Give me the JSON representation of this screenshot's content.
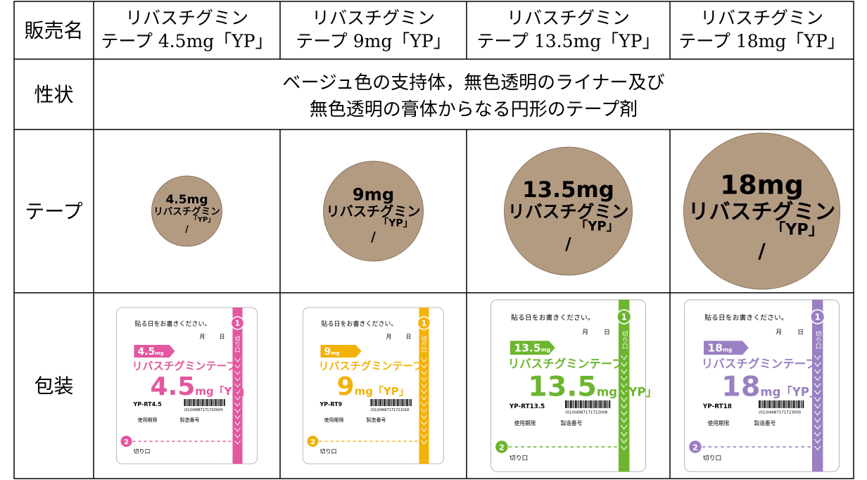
{
  "table": {
    "row_labels": [
      "販売名",
      "性状",
      "テープ",
      "包装"
    ],
    "description": [
      "ベージュ色の支持体，無色透明のライナー及び",
      "無色透明の膏体からなる円形のテープ剤"
    ],
    "products": [
      {
        "name": [
          "リバスチグミン",
          "テープ 4.5mg「YP」"
        ],
        "tape": {
          "dose": "4.5mg",
          "name": "リバスチグミン",
          "brand": "「YP」",
          "mark": "/"
        },
        "package": {
          "badge_number": "4.5",
          "badge_unit": "mg",
          "big_number": "4.5",
          "big_unit": "mg「YP」",
          "code": "YP-RT4.5",
          "barcode": "(01)04987171720004",
          "color": "#e2579f"
        }
      },
      {
        "name": [
          "リバスチグミン",
          "テープ 9mg「YP」"
        ],
        "tape": {
          "dose": "9mg",
          "name": "リバスチグミン",
          "brand": "「YP」",
          "mark": "/"
        },
        "package": {
          "badge_number": "9",
          "badge_unit": "mg",
          "big_number": "9",
          "big_unit": "mg「YP」",
          "code": "YP-RT9",
          "barcode": "(01)04987171721018",
          "color": "#f3b20a"
        }
      },
      {
        "name": [
          "リバスチグミン",
          "テープ 13.5mg「YP」"
        ],
        "tape": {
          "dose": "13.5mg",
          "name": "リバスチグミン",
          "brand": "「YP」",
          "mark": "/"
        },
        "package": {
          "badge_number": "13.5",
          "badge_unit": "mg",
          "big_number": "13.5",
          "big_unit": "mg「YP」",
          "code": "YP-RT13.5",
          "barcode": "(01)04987171722008",
          "color": "#6db52f"
        }
      },
      {
        "name": [
          "リバスチグミン",
          "テープ 18mg「YP」"
        ],
        "tape": {
          "dose": "18mg",
          "name": "リバスチグミン",
          "brand": "「YP」",
          "mark": "/"
        },
        "package": {
          "badge_number": "18",
          "badge_unit": "mg",
          "big_number": "18",
          "big_unit": "mg「YP」",
          "code": "YP-RT18",
          "barcode": "(01)04987171723005",
          "color": "#9a80c2"
        }
      }
    ],
    "package_common": {
      "instruction": "貼る日をお書きください。",
      "month": "月",
      "day": "日",
      "title": "リバスチグミンテープ",
      "expiry": "使用期限",
      "lot": "製造番号",
      "cut": "切り口",
      "step1": "1",
      "step2": "2"
    }
  }
}
